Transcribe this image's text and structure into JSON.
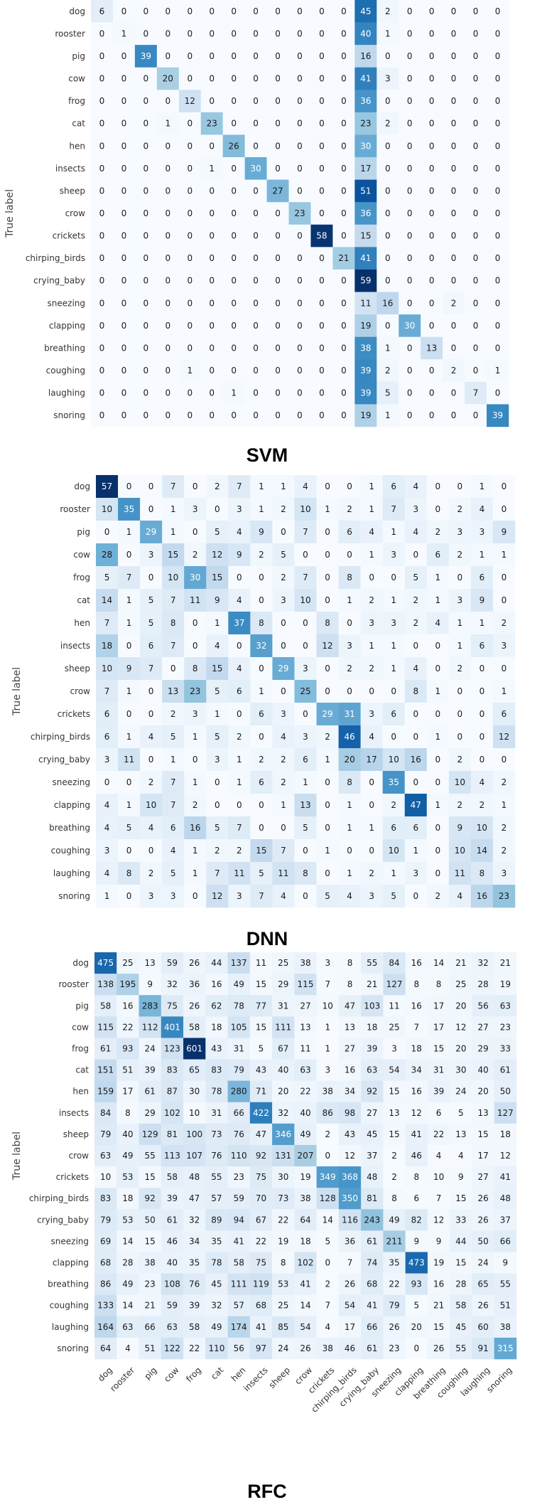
{
  "chart_data": {
    "type": "heatmap",
    "labels": [
      "dog",
      "rooster",
      "pig",
      "cow",
      "frog",
      "cat",
      "hen",
      "insects",
      "sheep",
      "crow",
      "crickets",
      "chirping_birds",
      "crying_baby",
      "sneezing",
      "clapping",
      "breathing",
      "coughing",
      "laughing",
      "snoring"
    ],
    "ylabel": "True label",
    "colormap": [
      "#f7fbff",
      "#deebf7",
      "#c6dbef",
      "#9ecae1",
      "#6baed6",
      "#4292c6",
      "#2171b5",
      "#08519c",
      "#08306b"
    ],
    "panels": [
      {
        "title": "SVM",
        "max": 59,
        "matrix": [
          [
            6,
            0,
            0,
            0,
            0,
            0,
            0,
            0,
            0,
            0,
            0,
            0,
            45,
            2,
            0,
            0,
            0,
            0,
            0
          ],
          [
            0,
            1,
            0,
            0,
            0,
            0,
            0,
            0,
            0,
            0,
            0,
            0,
            40,
            1,
            0,
            0,
            0,
            0,
            0
          ],
          [
            0,
            0,
            39,
            0,
            0,
            0,
            0,
            0,
            0,
            0,
            0,
            0,
            16,
            0,
            0,
            0,
            0,
            0,
            0
          ],
          [
            0,
            0,
            0,
            20,
            0,
            0,
            0,
            0,
            0,
            0,
            0,
            0,
            41,
            3,
            0,
            0,
            0,
            0,
            0
          ],
          [
            0,
            0,
            0,
            0,
            12,
            0,
            0,
            0,
            0,
            0,
            0,
            0,
            36,
            0,
            0,
            0,
            0,
            0,
            0
          ],
          [
            0,
            0,
            0,
            1,
            0,
            23,
            0,
            0,
            0,
            0,
            0,
            0,
            23,
            2,
            0,
            0,
            0,
            0,
            0
          ],
          [
            0,
            0,
            0,
            0,
            0,
            0,
            26,
            0,
            0,
            0,
            0,
            0,
            30,
            0,
            0,
            0,
            0,
            0,
            0
          ],
          [
            0,
            0,
            0,
            0,
            0,
            1,
            0,
            30,
            0,
            0,
            0,
            0,
            17,
            0,
            0,
            0,
            0,
            0,
            0
          ],
          [
            0,
            0,
            0,
            0,
            0,
            0,
            0,
            0,
            27,
            0,
            0,
            0,
            51,
            0,
            0,
            0,
            0,
            0,
            0
          ],
          [
            0,
            0,
            0,
            0,
            0,
            0,
            0,
            0,
            0,
            23,
            0,
            0,
            36,
            0,
            0,
            0,
            0,
            0,
            0
          ],
          [
            0,
            0,
            0,
            0,
            0,
            0,
            0,
            0,
            0,
            0,
            58,
            0,
            15,
            0,
            0,
            0,
            0,
            0,
            0
          ],
          [
            0,
            0,
            0,
            0,
            0,
            0,
            0,
            0,
            0,
            0,
            0,
            21,
            41,
            0,
            0,
            0,
            0,
            0,
            0
          ],
          [
            0,
            0,
            0,
            0,
            0,
            0,
            0,
            0,
            0,
            0,
            0,
            0,
            59,
            0,
            0,
            0,
            0,
            0,
            0
          ],
          [
            0,
            0,
            0,
            0,
            0,
            0,
            0,
            0,
            0,
            0,
            0,
            0,
            11,
            16,
            0,
            0,
            2,
            0,
            0
          ],
          [
            0,
            0,
            0,
            0,
            0,
            0,
            0,
            0,
            0,
            0,
            0,
            0,
            19,
            0,
            30,
            0,
            0,
            0,
            0
          ],
          [
            0,
            0,
            0,
            0,
            0,
            0,
            0,
            0,
            0,
            0,
            0,
            0,
            38,
            1,
            0,
            13,
            0,
            0,
            0
          ],
          [
            0,
            0,
            0,
            0,
            1,
            0,
            0,
            0,
            0,
            0,
            0,
            0,
            39,
            2,
            0,
            0,
            2,
            0,
            1
          ],
          [
            0,
            0,
            0,
            0,
            0,
            0,
            1,
            0,
            0,
            0,
            0,
            0,
            39,
            5,
            0,
            0,
            0,
            7,
            0
          ],
          [
            0,
            0,
            0,
            0,
            0,
            0,
            0,
            0,
            0,
            0,
            0,
            0,
            19,
            1,
            0,
            0,
            0,
            0,
            39
          ]
        ]
      },
      {
        "title": "DNN",
        "max": 57,
        "matrix": [
          [
            57,
            0,
            0,
            7,
            0,
            2,
            7,
            1,
            1,
            4,
            0,
            0,
            1,
            6,
            4,
            0,
            0,
            1,
            0
          ],
          [
            10,
            35,
            0,
            1,
            3,
            0,
            3,
            1,
            2,
            10,
            1,
            2,
            1,
            7,
            3,
            0,
            2,
            4,
            0
          ],
          [
            0,
            1,
            29,
            1,
            0,
            5,
            4,
            9,
            0,
            7,
            0,
            6,
            4,
            1,
            4,
            2,
            3,
            3,
            9
          ],
          [
            28,
            0,
            3,
            15,
            2,
            12,
            9,
            2,
            5,
            0,
            0,
            0,
            1,
            3,
            0,
            6,
            2,
            1,
            1
          ],
          [
            5,
            7,
            0,
            10,
            30,
            15,
            0,
            0,
            2,
            7,
            0,
            8,
            0,
            0,
            5,
            1,
            0,
            6,
            0
          ],
          [
            14,
            1,
            5,
            7,
            11,
            9,
            4,
            0,
            3,
            10,
            0,
            1,
            2,
            1,
            2,
            1,
            3,
            9,
            0
          ],
          [
            7,
            1,
            5,
            8,
            0,
            1,
            37,
            8,
            0,
            0,
            8,
            0,
            3,
            3,
            2,
            4,
            1,
            1,
            2
          ],
          [
            18,
            0,
            6,
            7,
            0,
            4,
            0,
            32,
            0,
            0,
            12,
            3,
            1,
            1,
            0,
            0,
            1,
            6,
            3
          ],
          [
            10,
            9,
            7,
            0,
            8,
            15,
            4,
            0,
            29,
            3,
            0,
            2,
            2,
            1,
            4,
            0,
            2,
            0,
            0
          ],
          [
            7,
            1,
            0,
            13,
            23,
            5,
            6,
            1,
            0,
            25,
            0,
            0,
            0,
            0,
            8,
            1,
            0,
            0,
            1
          ],
          [
            6,
            0,
            0,
            2,
            3,
            1,
            0,
            6,
            3,
            0,
            29,
            31,
            3,
            6,
            0,
            0,
            0,
            0,
            6
          ],
          [
            6,
            1,
            4,
            5,
            1,
            5,
            2,
            0,
            4,
            3,
            2,
            46,
            4,
            0,
            0,
            1,
            0,
            0,
            12
          ],
          [
            3,
            11,
            0,
            1,
            0,
            3,
            1,
            2,
            2,
            6,
            1,
            20,
            17,
            10,
            16,
            0,
            2,
            0,
            0
          ],
          [
            0,
            0,
            2,
            7,
            1,
            0,
            1,
            6,
            2,
            1,
            0,
            8,
            0,
            35,
            0,
            0,
            10,
            4,
            2
          ],
          [
            4,
            1,
            10,
            7,
            2,
            0,
            0,
            0,
            1,
            13,
            0,
            1,
            0,
            2,
            47,
            1,
            2,
            2,
            1
          ],
          [
            4,
            5,
            4,
            6,
            16,
            5,
            7,
            0,
            0,
            5,
            0,
            1,
            1,
            6,
            6,
            0,
            9,
            10,
            2
          ],
          [
            3,
            0,
            0,
            4,
            1,
            2,
            2,
            15,
            7,
            0,
            1,
            0,
            0,
            10,
            1,
            0,
            10,
            14,
            2
          ],
          [
            4,
            8,
            2,
            5,
            1,
            7,
            11,
            5,
            11,
            8,
            0,
            1,
            2,
            1,
            3,
            0,
            11,
            8,
            3
          ],
          [
            1,
            0,
            3,
            3,
            0,
            12,
            3,
            7,
            4,
            0,
            5,
            4,
            3,
            5,
            0,
            2,
            4,
            16,
            23
          ]
        ]
      },
      {
        "title": "RFC",
        "max": 601,
        "matrix": [
          [
            475,
            25,
            13,
            59,
            26,
            44,
            137,
            11,
            25,
            38,
            3,
            8,
            55,
            84,
            16,
            14,
            21,
            32,
            21
          ],
          [
            138,
            195,
            9,
            32,
            36,
            16,
            49,
            15,
            29,
            115,
            7,
            8,
            21,
            127,
            8,
            8,
            25,
            28,
            19
          ],
          [
            58,
            16,
            283,
            75,
            26,
            62,
            78,
            77,
            31,
            27,
            10,
            47,
            103,
            11,
            16,
            17,
            20,
            56,
            63
          ],
          [
            115,
            22,
            112,
            401,
            58,
            18,
            105,
            15,
            111,
            13,
            1,
            13,
            18,
            25,
            7,
            17,
            12,
            27,
            23
          ],
          [
            61,
            93,
            24,
            123,
            601,
            43,
            31,
            5,
            67,
            11,
            1,
            27,
            39,
            3,
            18,
            15,
            20,
            29,
            33
          ],
          [
            151,
            51,
            39,
            83,
            65,
            83,
            79,
            43,
            40,
            63,
            3,
            16,
            63,
            54,
            34,
            31,
            30,
            40,
            61
          ],
          [
            159,
            17,
            61,
            87,
            30,
            78,
            280,
            71,
            20,
            22,
            38,
            34,
            92,
            15,
            16,
            39,
            24,
            20,
            50
          ],
          [
            84,
            8,
            29,
            102,
            10,
            31,
            66,
            422,
            32,
            40,
            86,
            98,
            27,
            13,
            12,
            6,
            5,
            13,
            127
          ],
          [
            79,
            40,
            129,
            81,
            100,
            73,
            76,
            47,
            346,
            49,
            2,
            43,
            45,
            15,
            41,
            22,
            13,
            15,
            18
          ],
          [
            63,
            49,
            55,
            113,
            107,
            76,
            110,
            92,
            131,
            207,
            0,
            12,
            37,
            2,
            46,
            4,
            4,
            17,
            12
          ],
          [
            10,
            53,
            15,
            58,
            48,
            55,
            23,
            75,
            30,
            19,
            349,
            368,
            48,
            2,
            8,
            10,
            9,
            27,
            41
          ],
          [
            83,
            18,
            92,
            39,
            47,
            57,
            59,
            70,
            73,
            38,
            128,
            350,
            81,
            8,
            6,
            7,
            15,
            26,
            48
          ],
          [
            79,
            53,
            50,
            61,
            32,
            89,
            94,
            67,
            22,
            64,
            14,
            116,
            243,
            49,
            82,
            12,
            33,
            26,
            37
          ],
          [
            69,
            14,
            15,
            46,
            34,
            35,
            41,
            22,
            19,
            18,
            5,
            36,
            61,
            211,
            9,
            9,
            44,
            50,
            66
          ],
          [
            68,
            28,
            38,
            40,
            35,
            78,
            58,
            75,
            8,
            102,
            0,
            7,
            74,
            35,
            473,
            19,
            15,
            24,
            9
          ],
          [
            86,
            49,
            23,
            108,
            76,
            45,
            111,
            119,
            53,
            41,
            2,
            26,
            68,
            22,
            93,
            16,
            28,
            65,
            55
          ],
          [
            133,
            14,
            21,
            59,
            39,
            32,
            57,
            68,
            25,
            14,
            7,
            54,
            41,
            79,
            5,
            21,
            58,
            26,
            51
          ],
          [
            164,
            63,
            66,
            63,
            58,
            49,
            174,
            41,
            85,
            54,
            4,
            17,
            66,
            26,
            20,
            15,
            45,
            60,
            38
          ],
          [
            64,
            4,
            51,
            122,
            22,
            110,
            56,
            97,
            24,
            26,
            38,
            46,
            61,
            23,
            0,
            26,
            55,
            91,
            315
          ]
        ]
      }
    ]
  }
}
